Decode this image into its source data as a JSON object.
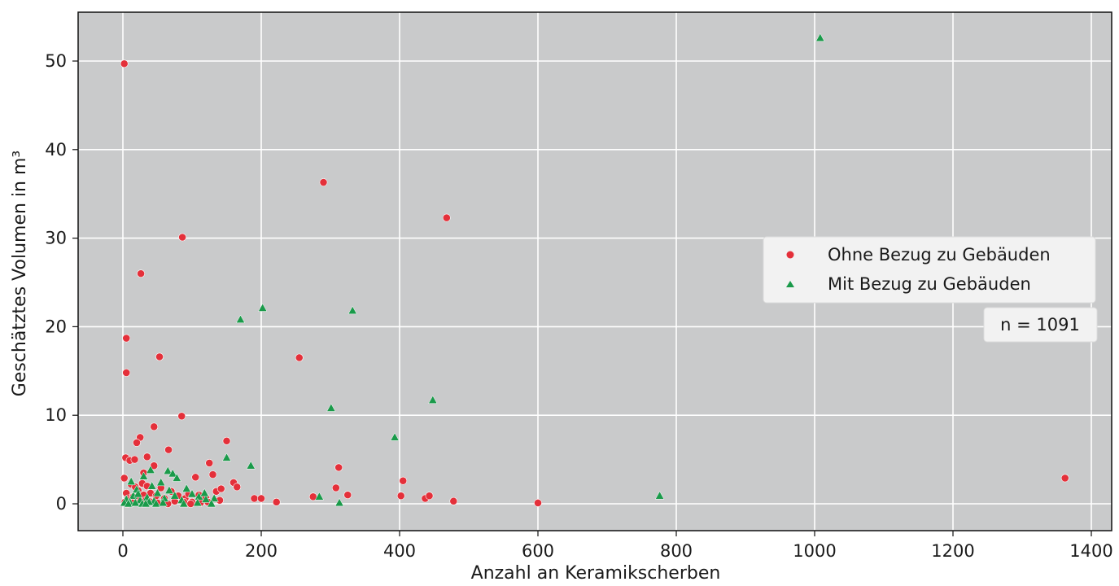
{
  "chart_data": {
    "type": "scatter",
    "title": "",
    "xlabel": "Anzahl an Keramikscherben",
    "ylabel": "Geschätztes Volumen in m³",
    "xlim": [
      -65,
      1425
    ],
    "ylim": [
      -2.6,
      55.5
    ],
    "xticks": [
      0,
      200,
      400,
      600,
      800,
      1000,
      1200,
      1400
    ],
    "yticks": [
      0,
      10,
      20,
      30,
      40,
      50
    ],
    "grid": true,
    "legend_position": "center-right",
    "annotation": "n = 1091",
    "colors": {
      "plot_bg": "#c9cacb",
      "grid": "#ffffff",
      "ohne": "#e4303a",
      "mit": "#1a9a4a"
    },
    "series": [
      {
        "name": "Ohne Bezug zu Gebäuden",
        "marker": "circle",
        "points": [
          [
            2,
            49.7
          ],
          [
            86,
            30.1
          ],
          [
            26,
            26.0
          ],
          [
            5,
            18.7
          ],
          [
            5,
            14.8
          ],
          [
            53,
            16.6
          ],
          [
            45,
            8.7
          ],
          [
            85,
            9.9
          ],
          [
            25,
            7.5
          ],
          [
            20,
            6.9
          ],
          [
            66,
            6.1
          ],
          [
            150,
            7.1
          ],
          [
            125,
            4.6
          ],
          [
            4,
            5.2
          ],
          [
            10,
            4.9
          ],
          [
            17,
            5.0
          ],
          [
            2,
            2.9
          ],
          [
            5,
            1.2
          ],
          [
            8,
            0.6
          ],
          [
            12,
            2.2
          ],
          [
            15,
            0.8
          ],
          [
            18,
            1.9
          ],
          [
            20,
            0.3
          ],
          [
            22,
            1.5
          ],
          [
            25,
            0.7
          ],
          [
            28,
            2.3
          ],
          [
            30,
            1.0
          ],
          [
            33,
            0.4
          ],
          [
            35,
            2.0
          ],
          [
            40,
            1.2
          ],
          [
            42,
            0.2
          ],
          [
            48,
            0.9
          ],
          [
            55,
            1.8
          ],
          [
            60,
            0.6
          ],
          [
            70,
            1.4
          ],
          [
            75,
            0.3
          ],
          [
            80,
            0.9
          ],
          [
            90,
            0.6
          ],
          [
            95,
            1.1
          ],
          [
            100,
            0.2
          ],
          [
            105,
            3.0
          ],
          [
            110,
            1.0
          ],
          [
            115,
            0.5
          ],
          [
            120,
            0.7
          ],
          [
            130,
            3.3
          ],
          [
            135,
            1.4
          ],
          [
            142,
            1.7
          ],
          [
            160,
            2.4
          ],
          [
            165,
            1.9
          ],
          [
            190,
            0.6
          ],
          [
            200,
            0.6
          ],
          [
            222,
            0.2
          ],
          [
            255,
            16.5
          ],
          [
            290,
            36.3
          ],
          [
            275,
            0.8
          ],
          [
            308,
            1.8
          ],
          [
            312,
            4.1
          ],
          [
            325,
            1.0
          ],
          [
            402,
            0.9
          ],
          [
            405,
            2.6
          ],
          [
            437,
            0.6
          ],
          [
            443,
            0.9
          ],
          [
            468,
            32.3
          ],
          [
            478,
            0.3
          ],
          [
            600,
            0.1
          ],
          [
            1362,
            2.9
          ],
          [
            3,
            0.2
          ],
          [
            6,
            0.0
          ],
          [
            9,
            0.4
          ],
          [
            14,
            0.1
          ],
          [
            38,
            0.3
          ],
          [
            50,
            0.1
          ],
          [
            65,
            0.0
          ],
          [
            88,
            0.2
          ],
          [
            98,
            0.0
          ],
          [
            112,
            0.1
          ],
          [
            123,
            0.2
          ],
          [
            140,
            0.4
          ],
          [
            35,
            5.3
          ],
          [
            30,
            3.5
          ],
          [
            45,
            4.3
          ]
        ]
      },
      {
        "name": "Mit Bezug zu Gebäuden",
        "marker": "triangle",
        "points": [
          [
            1008,
            52.6
          ],
          [
            202,
            22.1
          ],
          [
            332,
            21.8
          ],
          [
            170,
            20.8
          ],
          [
            448,
            11.7
          ],
          [
            301,
            10.8
          ],
          [
            393,
            7.5
          ],
          [
            150,
            5.2
          ],
          [
            185,
            4.3
          ],
          [
            65,
            3.7
          ],
          [
            72,
            3.4
          ],
          [
            78,
            2.9
          ],
          [
            40,
            3.8
          ],
          [
            30,
            3.1
          ],
          [
            55,
            2.4
          ],
          [
            92,
            1.7
          ],
          [
            100,
            1.1
          ],
          [
            110,
            0.8
          ],
          [
            120,
            0.5
          ],
          [
            132,
            0.6
          ],
          [
            85,
            0.4
          ],
          [
            75,
            0.9
          ],
          [
            60,
            0.6
          ],
          [
            50,
            1.2
          ],
          [
            45,
            0.3
          ],
          [
            35,
            0.7
          ],
          [
            25,
            0.4
          ],
          [
            15,
            0.9
          ],
          [
            10,
            0.2
          ],
          [
            5,
            0.5
          ],
          [
            2,
            0.1
          ],
          [
            20,
            1.6
          ],
          [
            42,
            2.0
          ],
          [
            67,
            1.5
          ],
          [
            118,
            1.2
          ],
          [
            284,
            0.8
          ],
          [
            313,
            0.1
          ],
          [
            776,
            0.9
          ],
          [
            8,
            0.0
          ],
          [
            18,
            0.1
          ],
          [
            28,
            0.0
          ],
          [
            38,
            0.2
          ],
          [
            48,
            0.0
          ],
          [
            58,
            0.1
          ],
          [
            88,
            0.0
          ],
          [
            108,
            0.1
          ],
          [
            128,
            0.0
          ],
          [
            12,
            2.5
          ],
          [
            22,
            1.1
          ],
          [
            33,
            0.0
          ]
        ]
      }
    ]
  }
}
